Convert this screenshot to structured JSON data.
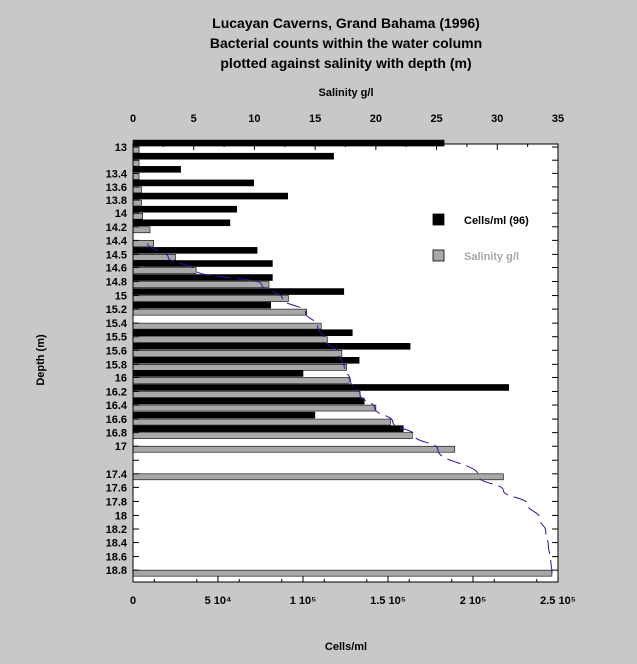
{
  "chart_data": {
    "type": "bar",
    "orientation": "horizontal",
    "title": [
      "Lucayan Caverns, Grand Bahama (1996)",
      "Bacterial counts within the water column",
      "plotted against salinity with depth (m)"
    ],
    "ylabel": "Depth (m)",
    "xlabel_bottom": "Cells/ml",
    "xlabel_top": "Salinity g/l",
    "x_bottom_ticks": [
      "0",
      "5 10⁴",
      "1 10⁵",
      "1.5 10⁵",
      "2 10⁵",
      "2.5 10⁵"
    ],
    "x_top_ticks": [
      "0",
      "5",
      "10",
      "15",
      "20",
      "25",
      "30",
      "35"
    ],
    "y_ticks": [
      "13",
      "13.4",
      "13.6",
      "13.8",
      "14",
      "14.2",
      "14.4",
      "14.5",
      "14.6",
      "14.8",
      "15",
      "15.2",
      "15.4",
      "15.5",
      "15.6",
      "15.8",
      "16",
      "16.2",
      "16.4",
      "16.6",
      "16.8",
      "17",
      "17.4",
      "17.6",
      "17.8",
      "18",
      "18.2",
      "18.4",
      "18.6",
      "18.8"
    ],
    "xlim_bottom": [
      0,
      250000
    ],
    "xlim_top": [
      0,
      35
    ],
    "depths": [
      13,
      13.2,
      13.4,
      13.6,
      13.8,
      14,
      14.2,
      14.4,
      14.5,
      14.6,
      14.8,
      15,
      15.2,
      15.4,
      15.5,
      15.6,
      15.8,
      16,
      16.2,
      16.4,
      16.6,
      16.8,
      17,
      17.4,
      18.8
    ],
    "series": [
      {
        "name": "Cells/ml (96)",
        "color": "#000000",
        "axis": "bottom",
        "values": [
          183000,
          118000,
          28000,
          71000,
          91000,
          61000,
          57000,
          null,
          73000,
          82000,
          82000,
          124000,
          81000,
          null,
          129000,
          163000,
          133000,
          100000,
          221000,
          136000,
          107000,
          159000,
          null,
          null,
          null
        ]
      },
      {
        "name": "Salinity g/l",
        "color": "#a8a8a8",
        "axis": "top",
        "values": [
          0.5,
          0.5,
          0.5,
          0.7,
          0.7,
          0.8,
          1.4,
          1.7,
          3.5,
          5.2,
          11.2,
          12.8,
          14.3,
          15.5,
          16.0,
          17.2,
          17.6,
          17.8,
          18.7,
          20.0,
          21.2,
          23.0,
          26.5,
          30.5,
          34.5
        ]
      }
    ],
    "trend_line": {
      "style": "dashed",
      "color": "#1a1aa8",
      "axis": "top",
      "depths": [
        14.4,
        14.5,
        14.6,
        14.8,
        15,
        15.2,
        15.4,
        15.5,
        15.6,
        15.8,
        16,
        16.2,
        16.4,
        16.6,
        16.8,
        17,
        17.4,
        17.6,
        17.8,
        18,
        18.2,
        18.4,
        18.6,
        18.8
      ],
      "values": [
        1.2,
        2.9,
        5.2,
        10.6,
        12.3,
        14.2,
        15.2,
        15.8,
        16.9,
        17.4,
        17.9,
        18.7,
        19.9,
        21.4,
        23.2,
        25.1,
        28.5,
        30.5,
        32.5,
        33.5,
        34.0,
        34.2,
        34.4,
        34.5
      ]
    },
    "legend_position": "right",
    "grid": false
  }
}
